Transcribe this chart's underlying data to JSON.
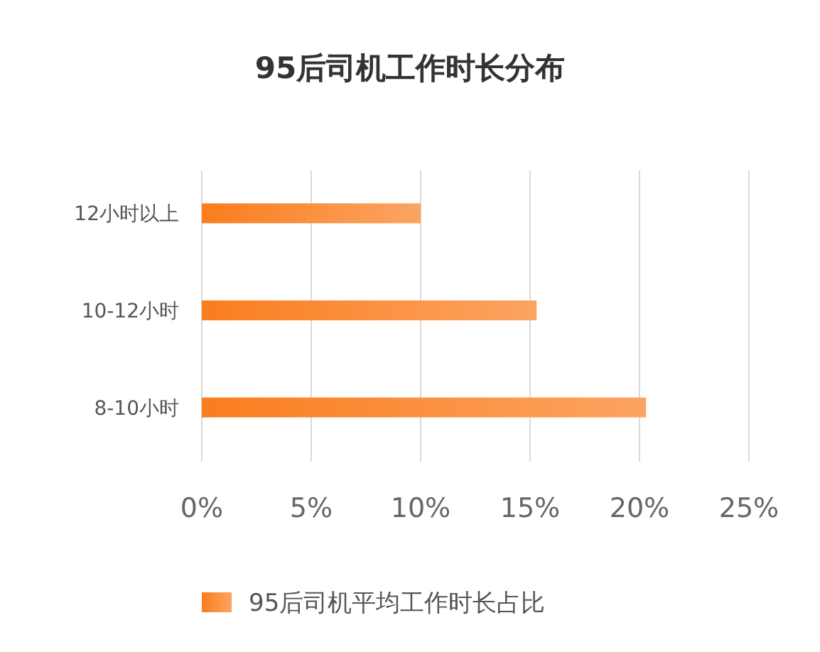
{
  "chart_data": {
    "type": "bar",
    "orientation": "horizontal",
    "title": "95后司机工作时长分布",
    "categories": [
      "12小时以上",
      "10-12小时",
      "8-10小时"
    ],
    "series": [
      {
        "name": "95后司机平均工作时长占比",
        "color": "#fa7d1e",
        "values": [
          10,
          15.3,
          20.3
        ]
      }
    ],
    "xlim": [
      0,
      25
    ],
    "xticks": [
      {
        "value": 0,
        "label": "0%"
      },
      {
        "value": 5,
        "label": "5%"
      },
      {
        "value": 10,
        "label": "10%"
      },
      {
        "value": 15,
        "label": "15%"
      },
      {
        "value": 20,
        "label": "20%"
      },
      {
        "value": 25,
        "label": "25%"
      }
    ],
    "grid": "x",
    "legend": "bottom"
  }
}
